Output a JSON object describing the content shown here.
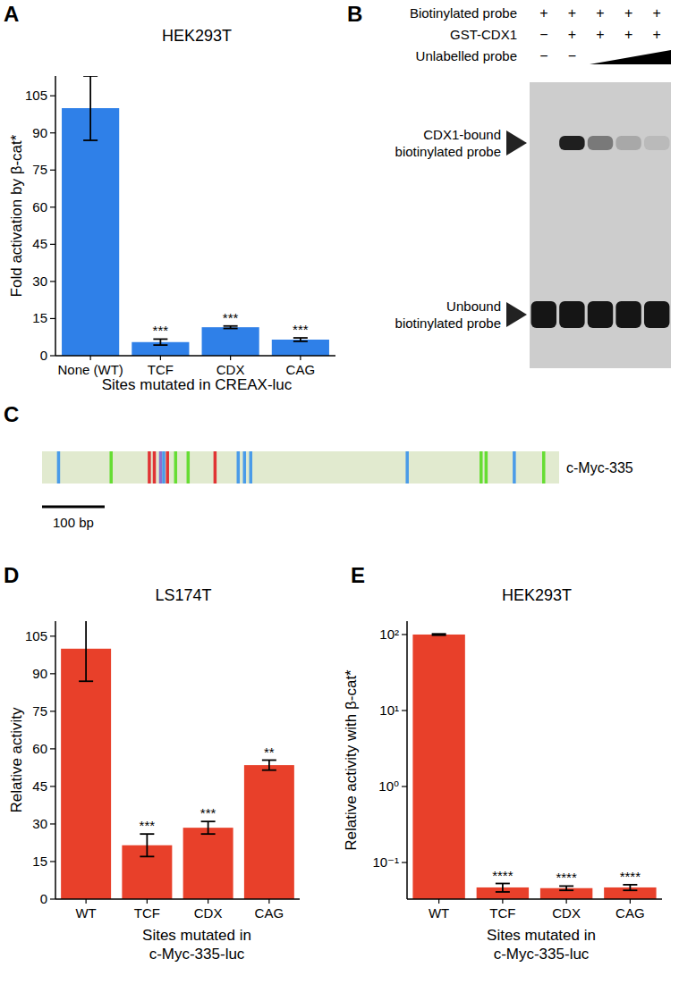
{
  "chart_data": [
    {
      "type": "bar",
      "label": "A",
      "title": "HEK293T",
      "categories": [
        "None (WT)",
        "TCF",
        "CDX",
        "CAG"
      ],
      "values": [
        100,
        5.5,
        11.5,
        6.5
      ],
      "errors": [
        13,
        1.2,
        0.5,
        0.7
      ],
      "annotations": [
        null,
        "***",
        "***",
        "***"
      ],
      "color": "#2f80e8",
      "y_label": "Fold activation by β-cat*",
      "x_label": "Sites mutated in CREAX-luc",
      "ylim": [
        0,
        113
      ],
      "yticks": [
        0,
        15,
        30,
        45,
        60,
        75,
        90,
        105
      ],
      "grid": false
    },
    {
      "type": "bar",
      "label": "D",
      "title": "LS174T",
      "categories": [
        "WT",
        "TCF",
        "CDX",
        "CAG"
      ],
      "values": [
        100,
        21.5,
        28.5,
        53.5
      ],
      "errors": [
        13,
        4.5,
        2.5,
        2
      ],
      "annotations": [
        null,
        "***",
        "***",
        "**"
      ],
      "color": "#e8402a",
      "y_label": "Relative activity",
      "x_label": "Sites mutated in\nc-Myc-335-luc",
      "ylim": [
        0,
        111
      ],
      "yticks": [
        0,
        15,
        30,
        45,
        60,
        75,
        90,
        105
      ],
      "grid": false
    },
    {
      "type": "bar",
      "label": "E",
      "title": "HEK293T",
      "categories": [
        "WT",
        "TCF",
        "CDX",
        "CAG"
      ],
      "values": [
        100,
        0.047,
        0.046,
        0.047
      ],
      "errors": [
        2,
        0.006,
        0.003,
        0.004
      ],
      "annotations": [
        null,
        "****",
        "****",
        "****"
      ],
      "color": "#e8402a",
      "y_label": "Relative activity with β-cat*",
      "x_label": "Sites mutated in\nc-Myc-335-luc",
      "log": "y",
      "ylim": [
        0.033,
        150
      ],
      "yticks": [
        {
          "value": 0.1,
          "label": "10⁻¹"
        },
        {
          "value": 1,
          "label": "10⁰"
        },
        {
          "value": 10,
          "label": "10¹"
        },
        {
          "value": 100,
          "label": "10²"
        }
      ],
      "grid": false
    }
  ],
  "gel": {
    "label": "B",
    "rows": [
      {
        "name": "Biotinylated probe",
        "lanes": [
          "+",
          "+",
          "+",
          "+",
          "+"
        ]
      },
      {
        "name": "GST-CDX1",
        "lanes": [
          "−",
          "+",
          "+",
          "+",
          "+"
        ]
      },
      {
        "name": "Unlabelled probe",
        "lanes": [
          "−",
          "−"
        ],
        "titration": true
      }
    ],
    "bands": [
      {
        "name": "CDX1-bound\nbiotinylated probe",
        "intensity": [
          0,
          0.95,
          0.45,
          0.2,
          0.1
        ]
      },
      {
        "name": "Unbound\nbiotinylated probe",
        "intensity": [
          1,
          1,
          1,
          1,
          1
        ]
      }
    ]
  },
  "diagram": {
    "label": "C",
    "name": "c-Myc-335",
    "length": 826,
    "scale_bar": 100,
    "scale_label": "100 bp",
    "sites": [
      {
        "position": 26,
        "color": "#4a9be8"
      },
      {
        "position": 110,
        "color": "#66dd33"
      },
      {
        "position": 171,
        "color": "#e03434"
      },
      {
        "position": 179,
        "color": "#e03434"
      },
      {
        "position": 189,
        "color": "#8a6fd0"
      },
      {
        "position": 194,
        "color": "#4a9be8"
      },
      {
        "position": 200,
        "color": "#e03434"
      },
      {
        "position": 213,
        "color": "#66dd33"
      },
      {
        "position": 233,
        "color": "#66dd33"
      },
      {
        "position": 276,
        "color": "#e03434"
      },
      {
        "position": 313,
        "color": "#4a9be8"
      },
      {
        "position": 323,
        "color": "#4a9be8"
      },
      {
        "position": 333,
        "color": "#4a9be8"
      },
      {
        "position": 583,
        "color": "#4a9be8"
      },
      {
        "position": 701,
        "color": "#66dd33"
      },
      {
        "position": 709,
        "color": "#66dd33"
      },
      {
        "position": 754,
        "color": "#4a9be8"
      },
      {
        "position": 801,
        "color": "#66dd33"
      }
    ]
  }
}
